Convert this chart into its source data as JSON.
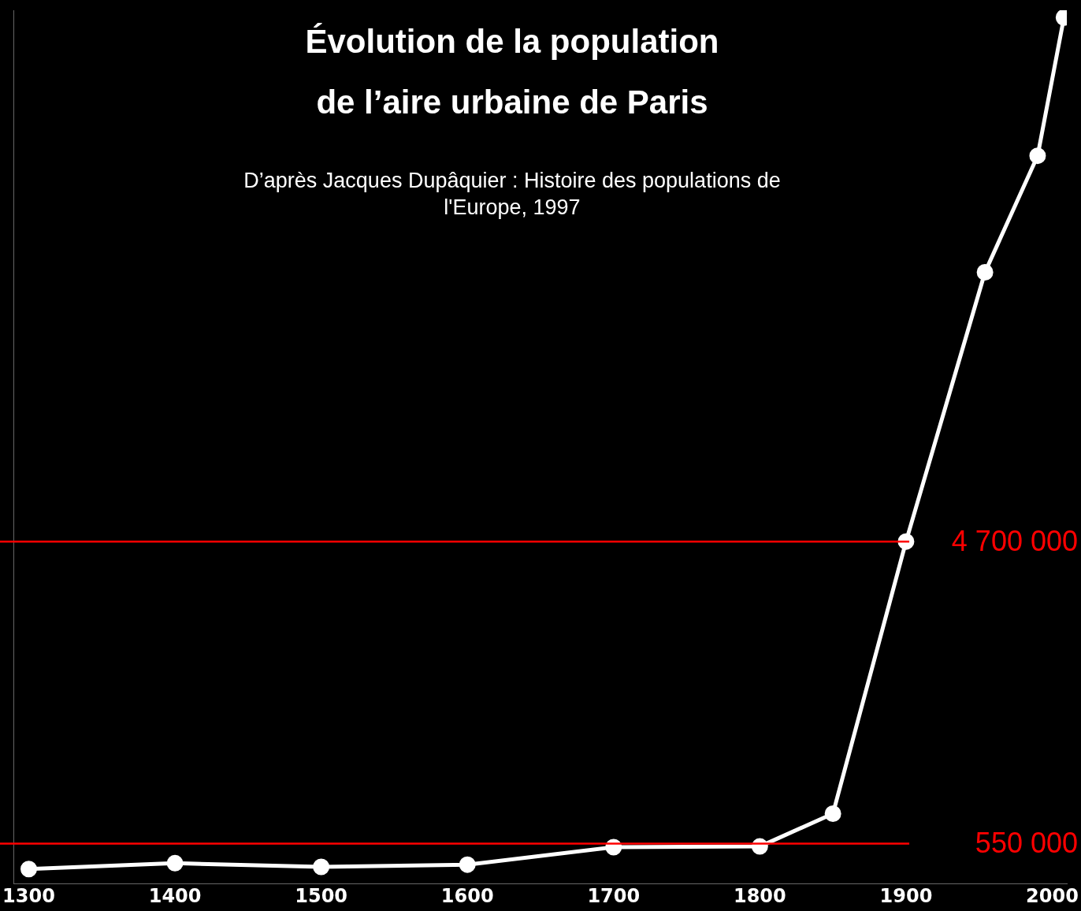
{
  "chart_data": {
    "type": "line",
    "title": "Évolution de la population\nde l’aire urbaine de Paris",
    "subtitle": "D’après Jacques Dupâquier :  Histoire des populations de l'Europe, 1997",
    "x": [
      1300,
      1400,
      1500,
      1600,
      1700,
      1800,
      1850,
      1900,
      1954,
      1990,
      2008
    ],
    "series": [
      {
        "color": "#ffffff",
        "values": [
          200000,
          280000,
          230000,
          260000,
          500000,
          510000,
          960000,
          4700000,
          8400000,
          10000000,
          11900000
        ]
      }
    ],
    "xlim": [
      1290,
      2010
    ],
    "ylim": [
      0,
      12000000
    ],
    "xticks": [
      1300,
      1400,
      1500,
      1600,
      1700,
      1800,
      1900,
      2000
    ],
    "yticks": [
      {
        "value": 550000,
        "label": "550 000"
      },
      {
        "value": 4700000,
        "label": "4 700 000"
      }
    ],
    "marker": "circle",
    "ref_lines": [
      {
        "axis": "y",
        "value": 4700000,
        "color": "#ff0000"
      },
      {
        "axis": "y",
        "value": 550000,
        "color": "#ff0000"
      }
    ]
  }
}
